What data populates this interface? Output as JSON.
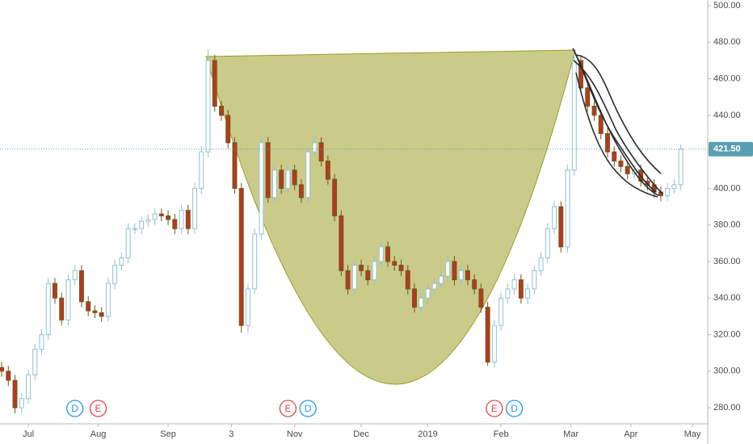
{
  "chart_data": {
    "type": "candlestick",
    "x": [
      0,
      2,
      4,
      6,
      8,
      10,
      12,
      14,
      16,
      18,
      20,
      22,
      24,
      26,
      28,
      30,
      32,
      34,
      36,
      38,
      40,
      42,
      44,
      46,
      48,
      50,
      52,
      54,
      56,
      58,
      60,
      62,
      64,
      66,
      68,
      70,
      72,
      74,
      76,
      78,
      80,
      82,
      84,
      86,
      88,
      90,
      92,
      94,
      96,
      98,
      100,
      102,
      104,
      106,
      108,
      110,
      112,
      114,
      116,
      118,
      120,
      122,
      124,
      126,
      128,
      130,
      132,
      134,
      136,
      138,
      140,
      142,
      144,
      146,
      148,
      150,
      152,
      154,
      156,
      158,
      160,
      162,
      164,
      166,
      168,
      170,
      172,
      174,
      176,
      178,
      180,
      182,
      184,
      186,
      188,
      190,
      192,
      194,
      196,
      198,
      200,
      202,
      204
    ],
    "open": [
      302,
      300,
      295,
      280,
      285,
      298,
      312,
      320,
      348,
      340,
      328,
      350,
      355,
      338,
      333,
      332,
      330,
      348,
      358,
      362,
      378,
      378,
      382,
      383,
      386,
      385,
      383,
      378,
      388,
      378,
      400,
      420,
      470,
      445,
      440,
      425,
      400,
      325,
      345,
      375,
      425,
      395,
      410,
      400,
      410,
      402,
      395,
      420,
      425,
      415,
      405,
      385,
      355,
      345,
      358,
      355,
      350,
      360,
      368,
      360,
      358,
      355,
      345,
      335,
      340,
      345,
      348,
      352,
      360,
      350,
      355,
      350,
      345,
      335,
      305,
      325,
      340,
      345,
      350,
      340,
      345,
      355,
      362,
      378,
      390,
      368,
      410,
      470,
      455,
      445,
      440,
      430,
      420,
      415,
      412,
      408,
      410,
      404,
      402,
      398,
      396,
      400,
      402
    ],
    "high": [
      305,
      303,
      298,
      288,
      301,
      315,
      323,
      351,
      351,
      343,
      353,
      358,
      358,
      341,
      336,
      335,
      351,
      361,
      365,
      381,
      381,
      385,
      386,
      389,
      389,
      388,
      386,
      391,
      391,
      403,
      423,
      476,
      473,
      448,
      443,
      428,
      403,
      348,
      378,
      428,
      428,
      413,
      413,
      413,
      413,
      405,
      423,
      428,
      428,
      418,
      408,
      388,
      358,
      361,
      361,
      358,
      363,
      371,
      371,
      363,
      361,
      358,
      348,
      343,
      348,
      351,
      355,
      363,
      363,
      358,
      358,
      353,
      348,
      338,
      328,
      343,
      348,
      353,
      353,
      348,
      358,
      365,
      381,
      393,
      393,
      413,
      476,
      473,
      458,
      448,
      443,
      433,
      423,
      418,
      415,
      413,
      413,
      407,
      405,
      401,
      403,
      405,
      424
    ],
    "low": [
      297,
      292,
      277,
      277,
      282,
      295,
      309,
      317,
      337,
      325,
      325,
      347,
      335,
      330,
      329,
      327,
      327,
      345,
      355,
      359,
      375,
      375,
      379,
      380,
      382,
      380,
      375,
      375,
      375,
      375,
      397,
      417,
      442,
      437,
      422,
      397,
      321,
      321,
      342,
      372,
      392,
      392,
      397,
      397,
      399,
      392,
      392,
      417,
      412,
      402,
      382,
      352,
      342,
      342,
      352,
      347,
      347,
      357,
      357,
      355,
      352,
      342,
      332,
      332,
      337,
      342,
      345,
      349,
      347,
      347,
      347,
      342,
      332,
      303,
      302,
      322,
      337,
      342,
      337,
      337,
      342,
      352,
      359,
      375,
      365,
      365,
      407,
      452,
      442,
      437,
      427,
      417,
      412,
      409,
      405,
      405,
      401,
      399,
      395,
      393,
      393,
      397,
      399
    ],
    "close": [
      300,
      295,
      280,
      285,
      298,
      312,
      320,
      348,
      340,
      328,
      350,
      355,
      338,
      333,
      332,
      330,
      348,
      358,
      362,
      378,
      378,
      382,
      383,
      386,
      385,
      383,
      378,
      388,
      378,
      400,
      420,
      470,
      445,
      440,
      425,
      400,
      325,
      345,
      375,
      425,
      395,
      410,
      400,
      410,
      402,
      395,
      420,
      425,
      415,
      405,
      385,
      355,
      345,
      358,
      355,
      350,
      360,
      368,
      360,
      358,
      355,
      345,
      335,
      340,
      345,
      348,
      352,
      360,
      350,
      355,
      350,
      345,
      335,
      305,
      325,
      340,
      345,
      350,
      340,
      345,
      355,
      362,
      378,
      390,
      368,
      410,
      470,
      455,
      445,
      440,
      430,
      420,
      415,
      412,
      408,
      410,
      404,
      402,
      398,
      396,
      400,
      402,
      421.5
    ],
    "up_color": "#8fc1d4",
    "down_color": "#b8391f",
    "xlim": [
      -0.5,
      212.1
    ],
    "xticks": [
      {
        "value": 8,
        "label": "Jul"
      },
      {
        "value": 29,
        "label": "Aug"
      },
      {
        "value": 50,
        "label": "Sep"
      },
      {
        "value": 69,
        "label": "3"
      },
      {
        "value": 88,
        "label": "Nov"
      },
      {
        "value": 108,
        "label": "Dec"
      },
      {
        "value": 128,
        "label": "2019"
      },
      {
        "value": 150,
        "label": "Feb"
      },
      {
        "value": 171,
        "label": "Mar"
      },
      {
        "value": 189,
        "label": "Apr"
      },
      {
        "value": 207.5,
        "label": "May"
      }
    ],
    "ylim": [
      271.2,
      503.1
    ],
    "yticks": [
      {
        "value": 280,
        "label": "280.00"
      },
      {
        "value": 300,
        "label": "300.00"
      },
      {
        "value": 320,
        "label": "320.00"
      },
      {
        "value": 340,
        "label": "340.00"
      },
      {
        "value": 360,
        "label": "360.00"
      },
      {
        "value": 380,
        "label": "380.00"
      },
      {
        "value": 400,
        "label": "400.00"
      },
      {
        "value": 420,
        "label": "420.00"
      },
      {
        "value": 440,
        "label": "440.00"
      },
      {
        "value": 460,
        "label": "460.00"
      },
      {
        "value": 480,
        "label": "480.00"
      },
      {
        "value": 500,
        "label": "500.00"
      }
    ],
    "last_price": {
      "value": 421.5,
      "label": "421.50"
    },
    "last_price_color": "#5a9fb0",
    "events": [
      {
        "x": 22,
        "label": "D"
      },
      {
        "x": 29,
        "label": "E"
      },
      {
        "x": 86,
        "label": "E"
      },
      {
        "x": 92,
        "label": "D"
      },
      {
        "x": 148,
        "label": "E"
      },
      {
        "x": 154,
        "label": "D"
      }
    ],
    "event_colors": {
      "D": "#2196f3",
      "E": "#e0474c"
    },
    "grid": false
  }
}
